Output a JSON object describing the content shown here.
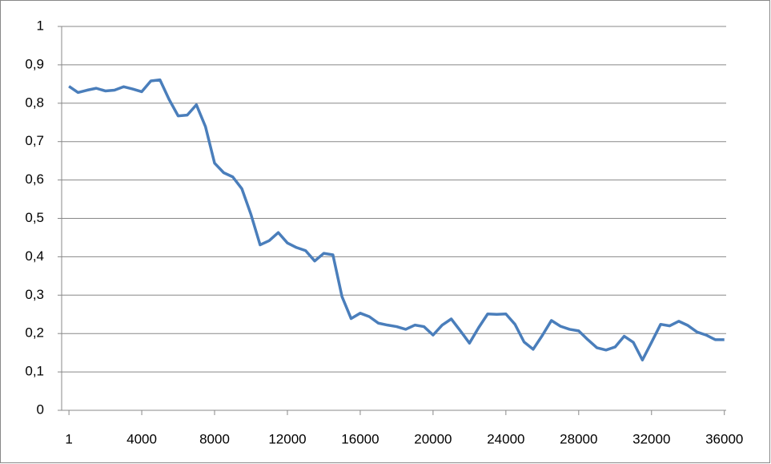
{
  "chart_data": {
    "type": "line",
    "x": [
      1,
      500,
      1000,
      1500,
      2000,
      2500,
      3000,
      3500,
      4000,
      4500,
      5000,
      5500,
      6000,
      6500,
      7000,
      7500,
      8000,
      8500,
      9000,
      9500,
      10000,
      10500,
      11000,
      11500,
      12000,
      12500,
      13000,
      13500,
      14000,
      14500,
      15000,
      15500,
      16000,
      16500,
      17000,
      17500,
      18000,
      18500,
      19000,
      19500,
      20000,
      20500,
      21000,
      21500,
      22000,
      22500,
      23000,
      23500,
      24000,
      24500,
      25000,
      25500,
      26000,
      26500,
      27000,
      27500,
      28000,
      28500,
      29000,
      29500,
      30000,
      30500,
      31000,
      31500,
      32000,
      32500,
      33000,
      33500,
      34000,
      34500,
      35000,
      35500,
      36000
    ],
    "series": [
      {
        "color": "#4a7ebb",
        "values": [
          0.844,
          0.828,
          0.834,
          0.839,
          0.832,
          0.834,
          0.843,
          0.837,
          0.83,
          0.858,
          0.861,
          0.81,
          0.767,
          0.769,
          0.796,
          0.739,
          0.644,
          0.619,
          0.608,
          0.577,
          0.51,
          0.431,
          0.442,
          0.463,
          0.436,
          0.424,
          0.416,
          0.389,
          0.409,
          0.405,
          0.296,
          0.239,
          0.253,
          0.244,
          0.227,
          0.222,
          0.218,
          0.211,
          0.222,
          0.218,
          0.196,
          0.222,
          0.238,
          0.207,
          0.175,
          0.215,
          0.251,
          0.25,
          0.251,
          0.224,
          0.178,
          0.159,
          0.195,
          0.234,
          0.219,
          0.211,
          0.207,
          0.184,
          0.163,
          0.157,
          0.165,
          0.193,
          0.177,
          0.131,
          0.177,
          0.224,
          0.22,
          0.232,
          0.221,
          0.204,
          0.196,
          0.184,
          0.184
        ]
      }
    ],
    "xlim": [
      -400,
      36100
    ],
    "xticks": [
      1,
      4000,
      8000,
      12000,
      16000,
      20000,
      24000,
      28000,
      32000,
      36000
    ],
    "ylim": [
      0,
      1
    ],
    "yticks": [
      0,
      {
        "value": 0.1,
        "label": "0,1"
      },
      {
        "value": 0.2,
        "label": "0,2"
      },
      {
        "value": 0.3,
        "label": "0,3"
      },
      {
        "value": 0.4,
        "label": "0,4"
      },
      {
        "value": 0.5,
        "label": "0,5"
      },
      {
        "value": 0.6,
        "label": "0,6"
      },
      {
        "value": 0.7,
        "label": "0,7"
      },
      {
        "value": 0.8,
        "label": "0,8"
      },
      {
        "value": 0.9,
        "label": "0,9"
      },
      1
    ],
    "grid": true
  }
}
